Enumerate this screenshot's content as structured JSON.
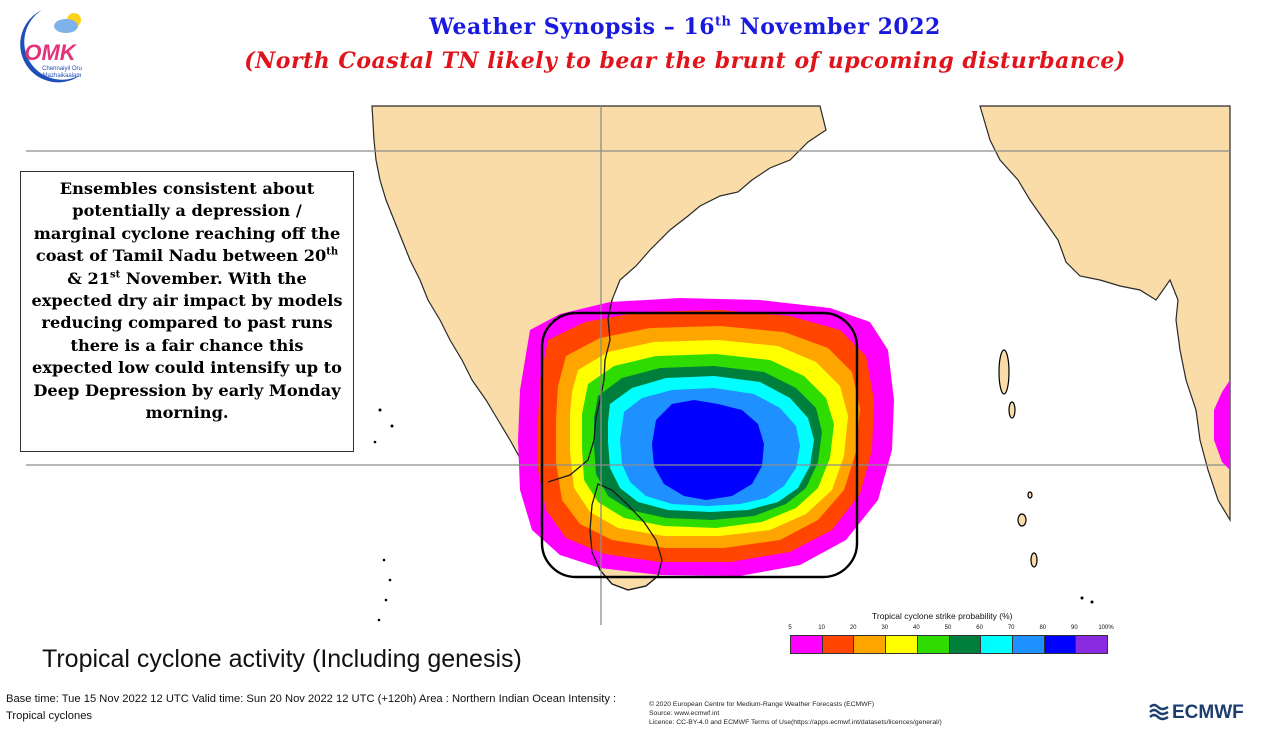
{
  "header": {
    "title_main": "Weather Synopsis – 16",
    "title_sup": "th",
    "title_end": " November 2022",
    "subtitle": "(North Coastal TN likely to bear the brunt of upcoming disturbance)"
  },
  "logo": {
    "brand": "OMK",
    "tagline_1": "Chennaiyil Oru",
    "tagline_2": "Mazhaikaalam"
  },
  "note": {
    "line1": "Ensembles consistent about potentially a depression / marginal cyclone reaching off the coast of Tamil Nadu between 20",
    "sup1": "th",
    "mid": " & 21",
    "sup2": "st",
    "line2": " November. With the expected dry air impact by models reducing compared to past runs there is a fair chance this expected low could intensify up to Deep Depression by early Monday morning."
  },
  "map": {
    "product_title": "Tropical cyclone activity (Including genesis)",
    "base_info": "Base time: Tue 15 Nov 2022 12 UTC Valid time: Sun 20 Nov 2022 12 UTC (+120h) Area : Northern Indian Ocean Intensity : Tropical cyclones",
    "credit_1": "© 2020 European Centre for Medium-Range Weather Forecasts (ECMWF)",
    "credit_2": "Source: www.ecmwf.int",
    "credit_3": "Licence: CC-BY-4.0 and ECMWF Terms of Use(https://apps.ecmwf.int/datasets/licences/general/)",
    "ecmwf_label": "ECMWF",
    "colors": {
      "land": "#f9dca8",
      "sea": "#ffffff",
      "highlight_box": "#000000"
    }
  },
  "legend": {
    "title": "Tropical cyclone strike probability (%)",
    "ticks": [
      "5",
      "10",
      "20",
      "30",
      "40",
      "50",
      "60",
      "70",
      "80",
      "90",
      "100%"
    ],
    "colors": [
      "#ff00ff",
      "#ff4500",
      "#ffa500",
      "#ffff00",
      "#2edc00",
      "#007f3c",
      "#00ffff",
      "#1e90ff",
      "#0000ff",
      "#8a2be2"
    ]
  }
}
